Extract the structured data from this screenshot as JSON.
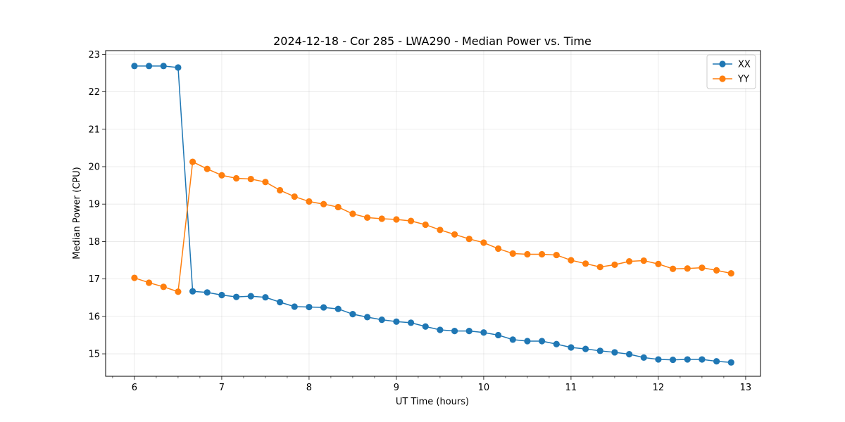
{
  "chart_data": {
    "type": "line",
    "title": "2024-12-18 - Cor 285 - LWA290 - Median Power vs. Time",
    "xlabel": "UT Time (hours)",
    "ylabel": "Median Power (CPU)",
    "xlim": [
      5.67,
      13.17
    ],
    "ylim": [
      14.4,
      23.1
    ],
    "xticks": [
      6,
      7,
      8,
      9,
      10,
      11,
      12,
      13
    ],
    "yticks": [
      15,
      16,
      17,
      18,
      19,
      20,
      21,
      22,
      23
    ],
    "minor_xstep": 0.25,
    "grid": true,
    "legend_position": "top-right",
    "x": [
      6.0,
      6.1667,
      6.3333,
      6.5,
      6.6667,
      6.8333,
      7.0,
      7.1667,
      7.3333,
      7.5,
      7.6667,
      7.8333,
      8.0,
      8.1667,
      8.3333,
      8.5,
      8.6667,
      8.8333,
      9.0,
      9.1667,
      9.3333,
      9.5,
      9.6667,
      9.8333,
      10.0,
      10.1667,
      10.3333,
      10.5,
      10.6667,
      10.8333,
      11.0,
      11.1667,
      11.3333,
      11.5,
      11.6667,
      11.8333,
      12.0,
      12.1667,
      12.3333,
      12.5,
      12.6667,
      12.8333
    ],
    "series": [
      {
        "name": "XX",
        "color": "#1f77b4",
        "values": [
          22.69,
          22.69,
          22.69,
          22.65,
          16.67,
          16.64,
          16.57,
          16.52,
          16.54,
          16.51,
          16.38,
          16.26,
          16.25,
          16.24,
          16.2,
          16.06,
          15.98,
          15.91,
          15.86,
          15.83,
          15.73,
          15.64,
          15.61,
          15.61,
          15.57,
          15.5,
          15.38,
          15.34,
          15.34,
          15.26,
          15.17,
          15.13,
          15.08,
          15.04,
          14.99,
          14.9,
          14.85,
          14.84,
          14.85,
          14.85,
          14.8,
          14.77
        ]
      },
      {
        "name": "YY",
        "color": "#ff7f0e",
        "values": [
          17.03,
          16.9,
          16.79,
          16.66,
          20.13,
          19.94,
          19.77,
          19.69,
          19.67,
          19.59,
          19.37,
          19.2,
          19.07,
          19.0,
          18.92,
          18.74,
          18.64,
          18.61,
          18.59,
          18.55,
          18.45,
          18.31,
          18.19,
          18.07,
          17.97,
          17.81,
          17.68,
          17.66,
          17.66,
          17.64,
          17.5,
          17.41,
          17.32,
          17.38,
          17.47,
          17.49,
          17.4,
          17.27,
          17.28,
          17.3,
          17.23,
          17.15
        ]
      }
    ]
  }
}
